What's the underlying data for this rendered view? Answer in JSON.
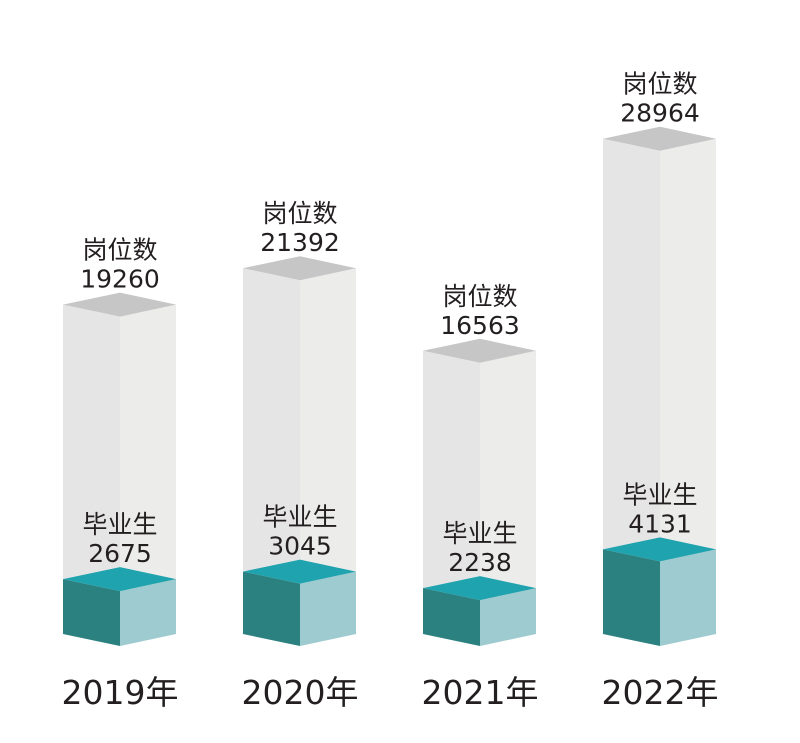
{
  "chart_data": {
    "type": "bar",
    "title": "",
    "xlabel": "",
    "ylabel": "",
    "categories": [
      "2019年",
      "2020年",
      "2021年",
      "2022年"
    ],
    "series": [
      {
        "name": "岗位数",
        "values": [
          19260,
          21392,
          16563,
          28964
        ]
      },
      {
        "name": "毕业生",
        "values": [
          2675,
          3045,
          2238,
          4131
        ]
      }
    ],
    "overlay": true,
    "grid": false,
    "legend": "none",
    "colors": {
      "jobs_front": "#e6e5e5",
      "jobs_side": "#ececeb",
      "jobs_top": "#c6c6c6",
      "grads_front": "#2a8180",
      "grads_side": "#9ecbd0",
      "grads_top": "#1fa3ae",
      "text": "#231f20"
    }
  }
}
